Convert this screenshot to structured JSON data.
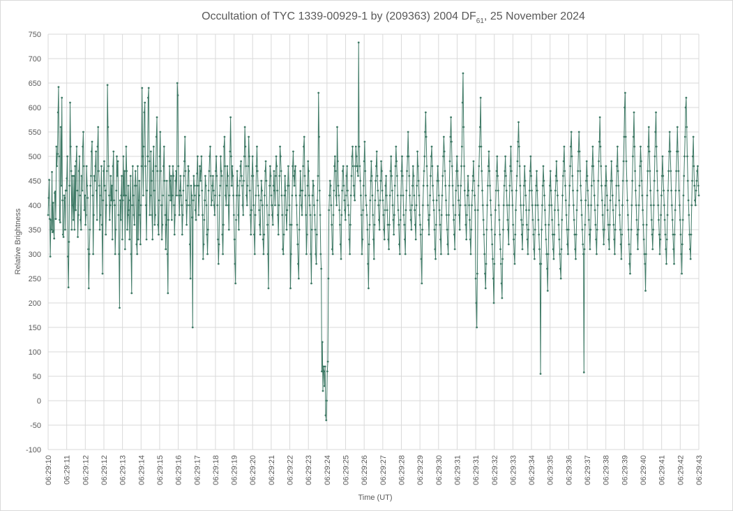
{
  "chart_data": {
    "type": "line",
    "title": "Occultation of TYC 1339-00929-1 by (209363) 2004 DF",
    "title_subscript": "61",
    "title_suffix": ", 25 November 2024",
    "xlabel": "Time (UT)",
    "ylabel": "Relative  Brightness",
    "ylim": [
      -100,
      750
    ],
    "yticks": [
      -100,
      -50,
      0,
      50,
      100,
      150,
      200,
      250,
      300,
      350,
      400,
      450,
      500,
      550,
      600,
      650,
      700,
      750
    ],
    "x_tick_labels": [
      "06:29:10",
      "06:29:11",
      "06:29:12",
      "06:29:12",
      "06:29:13",
      "06:29:14",
      "06:29:15",
      "06:29:16",
      "06:29:17",
      "06:29:18",
      "06:29:19",
      "06:29:20",
      "06:29:21",
      "06:29:22",
      "06:29:23",
      "06:29:24",
      "06:29:25",
      "06:29:26",
      "06:29:27",
      "06:29:28",
      "06:29:29",
      "06:29:30",
      "06:29:31",
      "06:29:31",
      "06:29:32",
      "06:29:33",
      "06:29:34",
      "06:29:35",
      "06:29:36",
      "06:29:37",
      "06:29:38",
      "06:29:39",
      "06:29:40",
      "06:29:41",
      "06:29:42",
      "06:29:43"
    ],
    "grid": true,
    "series_color": "#3f7a66",
    "series": [
      {
        "values": [
          380,
          415,
          452,
          372,
          295,
          370,
          350,
          468,
          345,
          405,
          348,
          332,
          425,
          428,
          372,
          520,
          480,
          505,
          590,
          642,
          500,
          370,
          365,
          560,
          440,
          620,
          410,
          340,
          335,
          420,
          415,
          350,
          430,
          430,
          455,
          500,
          295,
          232,
          325,
          440,
          610,
          520,
          470,
          350,
          460,
          400,
          370,
          460,
          350,
          480,
          390,
          490,
          520,
          430,
          335,
          380,
          470,
          500,
          420,
          370,
          350,
          460,
          430,
          520,
          550,
          480,
          390,
          420,
          360,
          380,
          480,
          440,
          415,
          310,
          230,
          300,
          350,
          440,
          460,
          510,
          530,
          420,
          300,
          380,
          460,
          450,
          480,
          510,
          430,
          370,
          520,
          560,
          470,
          440,
          350,
          380,
          420,
          480,
          360,
          260,
          410,
          470,
          490,
          440,
          430,
          340,
          400,
          470,
          646,
          560,
          480,
          420,
          370,
          400,
          460,
          410,
          440,
          330,
          480,
          510,
          410,
          400,
          300,
          350,
          430,
          500,
          460,
          490,
          380,
          300,
          190,
          410,
          370,
          420,
          460,
          330,
          410,
          500,
          420,
          470,
          310,
          420,
          520,
          470,
          350,
          380,
          440,
          390,
          330,
          410,
          460,
          300,
          220,
          400,
          480,
          420,
          380,
          360,
          440,
          470,
          440,
          320,
          300,
          480,
          330,
          410,
          450,
          380,
          320,
          400,
          480,
          640,
          500,
          420,
          520,
          590,
          610,
          480,
          400,
          330,
          430,
          500,
          620,
          640,
          490,
          380,
          420,
          510,
          450,
          380,
          330,
          470,
          520,
          430,
          360,
          380,
          480,
          540,
          580,
          470,
          360,
          340,
          410,
          500,
          550,
          470,
          400,
          330,
          360,
          420,
          480,
          520,
          450,
          380,
          310,
          360,
          450,
          300,
          220,
          370,
          420,
          480,
          450,
          410,
          460,
          370,
          420,
          480,
          460,
          400,
          340,
          380,
          450,
          470,
          420,
          650,
          625,
          480,
          420,
          380,
          430,
          460,
          420,
          400,
          340,
          380,
          430,
          460,
          490,
          540,
          470,
          410,
          360,
          400,
          440,
          480,
          470,
          400,
          320,
          250,
          440,
          420,
          375,
          150,
          410,
          460,
          440,
          420,
          390,
          370,
          440,
          465,
          500,
          440,
          380,
          420,
          480,
          450,
          470,
          500,
          430,
          380,
          290,
          320,
          370,
          410,
          460,
          440,
          400,
          340,
          300,
          350,
          430,
          470,
          500,
          520,
          460,
          400,
          410,
          440,
          460,
          430,
          400,
          380,
          420,
          470,
          500,
          460,
          400,
          330,
          280,
          320,
          420,
          440,
          500,
          470,
          460,
          340,
          300,
          360,
          520,
          540,
          480,
          420,
          400,
          440,
          480,
          460,
          400,
          350,
          420,
          510,
          580,
          500,
          440,
          480,
          460,
          420,
          380,
          330,
          280,
          240,
          370,
          420,
          470,
          440,
          380,
          350,
          420,
          450,
          480,
          490,
          460,
          440,
          400,
          380,
          450,
          500,
          560,
          520,
          480,
          420,
          400,
          440,
          480,
          540,
          500,
          430,
          380,
          340,
          390,
          460,
          500,
          460,
          400,
          340,
          300,
          380,
          420,
          480,
          520,
          470,
          440,
          420,
          390,
          360,
          340,
          410,
          450,
          430,
          400,
          330,
          300,
          340,
          420,
          470,
          490,
          450,
          400,
          360,
          300,
          230,
          380,
          440,
          480,
          460,
          420,
          400,
          380,
          360,
          440,
          470,
          430,
          400,
          460,
          500,
          480,
          430,
          380,
          340,
          400,
          460,
          520,
          500,
          470,
          420,
          380,
          310,
          300,
          340,
          420,
          460,
          430,
          380,
          350,
          390,
          440,
          480,
          440,
          400,
          360,
          230,
          300,
          360,
          420,
          480,
          510,
          460,
          440,
          470,
          480,
          420,
          400,
          360,
          320,
          280,
          250,
          350,
          420,
          470,
          430,
          400,
          380,
          430,
          480,
          520,
          540,
          460,
          420,
          380,
          300,
          340,
          440,
          490,
          470,
          420,
          400,
          380,
          300,
          240,
          350,
          420,
          450,
          440,
          400,
          380,
          350,
          300,
          280,
          340,
          410,
          460,
          630,
          540,
          430,
          380,
          300,
          270,
          60,
          120,
          20,
          70,
          60,
          30,
          70,
          -30,
          -40,
          0,
          60,
          80,
          250,
          390,
          420,
          450,
          440,
          400,
          360,
          310,
          300,
          380,
          430,
          480,
          500,
          470,
          420,
          400,
          560,
          490,
          440,
          420,
          390,
          360,
          320,
          290,
          380,
          430,
          470,
          480,
          440,
          410,
          390,
          370,
          420,
          460,
          480,
          430,
          400,
          380,
          330,
          300,
          360,
          420,
          460,
          500,
          520,
          480,
          440,
          420,
          410,
          480,
          520,
          500,
          480,
          470,
          460,
          733,
          520,
          480,
          450,
          420,
          380,
          300,
          330,
          390,
          440,
          490,
          530,
          470,
          420,
          400,
          380,
          350,
          280,
          230,
          320,
          360,
          410,
          450,
          490,
          460,
          420,
          380,
          330,
          290,
          360,
          410,
          450,
          480,
          510,
          460,
          430,
          400,
          370,
          350,
          410,
          450,
          490,
          470,
          430,
          410,
          380,
          350,
          330,
          390,
          440,
          460,
          420,
          390,
          360,
          330,
          310,
          360,
          420,
          470,
          500,
          460,
          430,
          400,
          370,
          340,
          380,
          440,
          480,
          520,
          490,
          460,
          420,
          390,
          360,
          320,
          300,
          370,
          420,
          470,
          500,
          460,
          420,
          380,
          360,
          330,
          300,
          390,
          430,
          470,
          500,
          550,
          500,
          460,
          420,
          390,
          370,
          350,
          400,
          440,
          480,
          460,
          420,
          390,
          360,
          330,
          400,
          440,
          510,
          480,
          450,
          420,
          380,
          360,
          340,
          290,
          240,
          350,
          400,
          440,
          470,
          500,
          550,
          590,
          540,
          480,
          440,
          400,
          370,
          340,
          380,
          420,
          460,
          500,
          520,
          480,
          440,
          410,
          390,
          350,
          310,
          290,
          360,
          410,
          450,
          480,
          450,
          420,
          390,
          360,
          330,
          300,
          380,
          420,
          460,
          500,
          540,
          510,
          470,
          440,
          410,
          380,
          350,
          320,
          300,
          380,
          440,
          490,
          540,
          580,
          530,
          480,
          440,
          400,
          370,
          340,
          310,
          380,
          430,
          470,
          500,
          470,
          440,
          410,
          380,
          350,
          400,
          440,
          480,
          520,
          610,
          670,
          560,
          480,
          430,
          400,
          360,
          330,
          380,
          420,
          460,
          430,
          400,
          370,
          330,
          300,
          350,
          400,
          430,
          460,
          490,
          450,
          420,
          390,
          250,
          200,
          150,
          260,
          390,
          440,
          480,
          520,
          560,
          620,
          520,
          470,
          430,
          400,
          370,
          340,
          300,
          260,
          230,
          280,
          350,
          400,
          440,
          480,
          510,
          470,
          440,
          410,
          380,
          350,
          320,
          290,
          250,
          200,
          280,
          340,
          390,
          430,
          470,
          500,
          460,
          430,
          400,
          370,
          340,
          310,
          280,
          240,
          210,
          290,
          350,
          400,
          440,
          470,
          500,
          460,
          430,
          400,
          370,
          350,
          320,
          400,
          440,
          480,
          520,
          470,
          430,
          400,
          360,
          330,
          300,
          280,
          340,
          390,
          430,
          460,
          490,
          530,
          570,
          520,
          480,
          440,
          400,
          370,
          340,
          310,
          360,
          400,
          440,
          480,
          450,
          420,
          390,
          360,
          330,
          300,
          350,
          390,
          430,
          470,
          500,
          460,
          430,
          400,
          370,
          340,
          310,
          290,
          350,
          400,
          440,
          470,
          430,
          400,
          370,
          340,
          310,
          280,
          55,
          280,
          350,
          400,
          440,
          480,
          450,
          420,
          390,
          360,
          330,
          300,
          270,
          225,
          300,
          360,
          400,
          440,
          470,
          430,
          400,
          370,
          340,
          310,
          290,
          340,
          390,
          430,
          460,
          490,
          450,
          420,
          390,
          360,
          330,
          300,
          270,
          250,
          310,
          370,
          420,
          460,
          490,
          520,
          470,
          440,
          410,
          380,
          350,
          320,
          300,
          350,
          400,
          440,
          480,
          520,
          550,
          500,
          460,
          430,
          400,
          370,
          340,
          310,
          290,
          340,
          390,
          430,
          470,
          510,
          550,
          510,
          470,
          440,
          410,
          380,
          350,
          320,
          300,
          58,
          310,
          360,
          410,
          450,
          490,
          460,
          430,
          400,
          370,
          340,
          310,
          350,
          400,
          440,
          480,
          520,
          480,
          450,
          420,
          390,
          360,
          330,
          300,
          350,
          400,
          450,
          490,
          530,
          580,
          520,
          480,
          440,
          410,
          380,
          350,
          320,
          350,
          400,
          440,
          480,
          450,
          420,
          390,
          360,
          330,
          310,
          360,
          410,
          450,
          490,
          450,
          420,
          390,
          360,
          330,
          300,
          350,
          400,
          440,
          480,
          520,
          470,
          440,
          410,
          380,
          350,
          320,
          290,
          340,
          400,
          450,
          490,
          540,
          600,
          630,
          540,
          490,
          450,
          410,
          380,
          350,
          320,
          280,
          260,
          300,
          350,
          400,
          450,
          500,
          540,
          590,
          520,
          470,
          430,
          400,
          370,
          340,
          310,
          350,
          400,
          440,
          480,
          520,
          490,
          450,
          420,
          390,
          360,
          330,
          300,
          280,
          225,
          300,
          360,
          420,
          470,
          520,
          560,
          510,
          470,
          430,
          400,
          370,
          340,
          310,
          350,
          400,
          450,
          500,
          550,
          590,
          520,
          470,
          430,
          400,
          370,
          340,
          300,
          330,
          380,
          420,
          460,
          500,
          460,
          430,
          400,
          370,
          340,
          310,
          280,
          330,
          380,
          430,
          470,
          510,
          550,
          510,
          470,
          430,
          400,
          370,
          340,
          310,
          280,
          340,
          390,
          430,
          470,
          510,
          560,
          510,
          470,
          430,
          400,
          370,
          340,
          300,
          260,
          320,
          370,
          420,
          460,
          500,
          540,
          600,
          620,
          560,
          500,
          450,
          410,
          380,
          340,
          310,
          290,
          340,
          400,
          450,
          500,
          540,
          480,
          440,
          410,
          400,
          430,
          450,
          470,
          480,
          440,
          420
        ]
      }
    ]
  }
}
